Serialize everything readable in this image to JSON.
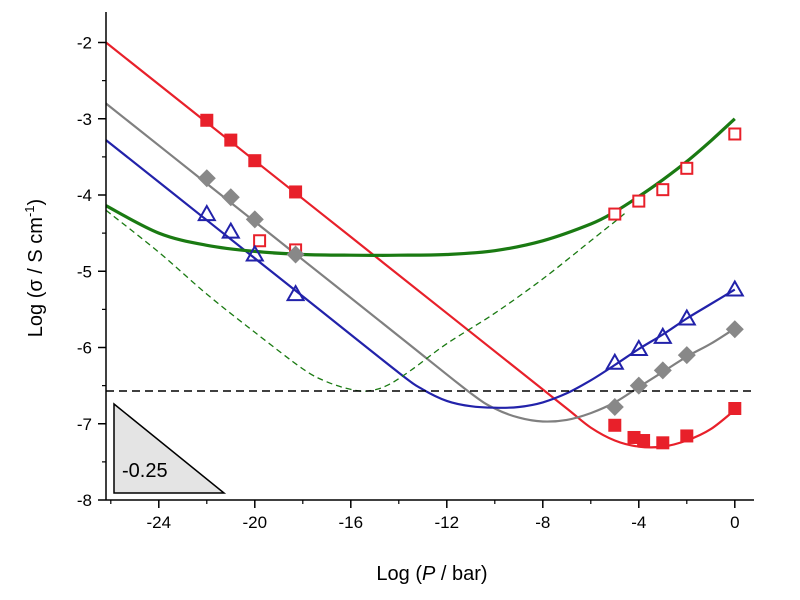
{
  "chart_data": {
    "type": "scatter",
    "xlabel_parts": [
      "Log (",
      "P",
      " / bar)"
    ],
    "ylabel_parts": [
      "Log (σ / S cm",
      "-1",
      ")"
    ],
    "xlim": [
      -26.2,
      0.8
    ],
    "ylim": [
      -8,
      -1.6
    ],
    "xticks": [
      -24,
      -20,
      -16,
      -12,
      -8,
      -4,
      0
    ],
    "xtick_labels": [
      "-24",
      "-20",
      "-16",
      "-12",
      "-8",
      "-4",
      "0"
    ],
    "yticks": [
      -8,
      -7,
      -6,
      -5,
      -4,
      -3,
      -2
    ],
    "ytick_labels": [
      "-8",
      "-7",
      "-6",
      "-5",
      "-4",
      "-3",
      "-2"
    ],
    "grid": false,
    "slope_annotation": "-0.25",
    "reference_line_y": -6.57,
    "series": [
      {
        "color": "#e8202a",
        "marker": "filled-square",
        "points": [
          [
            -22,
            -3.02
          ],
          [
            -21,
            -3.28
          ],
          [
            -20,
            -3.55
          ],
          [
            -18.3,
            -3.96
          ],
          [
            -5,
            -7.02
          ],
          [
            -4.2,
            -7.18
          ],
          [
            -3.8,
            -7.22
          ],
          [
            -3,
            -7.25
          ],
          [
            -2,
            -7.16
          ],
          [
            0,
            -6.8
          ]
        ]
      },
      {
        "color": "#e8202a",
        "marker": "open-square",
        "points": [
          [
            -19.8,
            -4.6
          ],
          [
            -18.3,
            -4.72
          ],
          [
            -5,
            -4.25
          ],
          [
            -4,
            -4.08
          ],
          [
            -3,
            -3.93
          ],
          [
            -2,
            -3.65
          ],
          [
            0,
            -3.2
          ]
        ]
      },
      {
        "color": "#888888",
        "marker": "filled-diamond",
        "points": [
          [
            -22,
            -3.78
          ],
          [
            -21,
            -4.03
          ],
          [
            -20,
            -4.32
          ],
          [
            -18.3,
            -4.78
          ],
          [
            -5,
            -6.78
          ],
          [
            -4,
            -6.5
          ],
          [
            -3,
            -6.3
          ],
          [
            -2,
            -6.1
          ],
          [
            0,
            -5.76
          ]
        ]
      },
      {
        "color": "#2222aa",
        "marker": "open-triangle",
        "points": [
          [
            -22,
            -4.25
          ],
          [
            -21,
            -4.48
          ],
          [
            -20,
            -4.78
          ],
          [
            -18.3,
            -5.3
          ],
          [
            -5,
            -6.2
          ],
          [
            -4,
            -6.02
          ],
          [
            -3,
            -5.86
          ],
          [
            -2,
            -5.62
          ],
          [
            0,
            -5.24
          ]
        ]
      }
    ],
    "curves": [
      {
        "color": "#e8202a",
        "style": "solid",
        "points": [
          [
            -26.2,
            -2.0
          ],
          [
            -20,
            -3.55
          ],
          [
            -16,
            -4.55
          ],
          [
            -12,
            -5.55
          ],
          [
            -9,
            -6.3
          ],
          [
            -7,
            -6.8
          ],
          [
            -6,
            -7.05
          ],
          [
            -5,
            -7.22
          ],
          [
            -4,
            -7.3
          ],
          [
            -3,
            -7.3
          ],
          [
            -2,
            -7.22
          ],
          [
            -1,
            -7.07
          ],
          [
            0,
            -6.82
          ]
        ]
      },
      {
        "color": "#808080",
        "style": "solid",
        "points": [
          [
            -26.2,
            -2.8
          ],
          [
            -22,
            -3.85
          ],
          [
            -18,
            -4.85
          ],
          [
            -14,
            -5.85
          ],
          [
            -11,
            -6.6
          ],
          [
            -10,
            -6.8
          ],
          [
            -9,
            -6.92
          ],
          [
            -8,
            -6.97
          ],
          [
            -7,
            -6.95
          ],
          [
            -6,
            -6.86
          ],
          [
            -5,
            -6.72
          ],
          [
            -4,
            -6.52
          ],
          [
            -3,
            -6.32
          ],
          [
            -2,
            -6.12
          ],
          [
            -1,
            -5.95
          ],
          [
            0,
            -5.75
          ]
        ]
      },
      {
        "color": "#2222aa",
        "style": "solid",
        "points": [
          [
            -26.2,
            -3.28
          ],
          [
            -22,
            -4.33
          ],
          [
            -18,
            -5.33
          ],
          [
            -14,
            -6.33
          ],
          [
            -13,
            -6.55
          ],
          [
            -12,
            -6.7
          ],
          [
            -11,
            -6.77
          ],
          [
            -10,
            -6.79
          ],
          [
            -9,
            -6.78
          ],
          [
            -8,
            -6.72
          ],
          [
            -7,
            -6.6
          ],
          [
            -6,
            -6.43
          ],
          [
            -5,
            -6.23
          ],
          [
            -4,
            -6.02
          ],
          [
            -3,
            -5.83
          ],
          [
            -2,
            -5.62
          ],
          [
            -1,
            -5.43
          ],
          [
            0,
            -5.24
          ]
        ]
      },
      {
        "color": "#1a7a12",
        "style": "solid",
        "points": [
          [
            -26.2,
            -4.14
          ],
          [
            -24,
            -4.5
          ],
          [
            -22,
            -4.66
          ],
          [
            -20,
            -4.74
          ],
          [
            -18,
            -4.78
          ],
          [
            -16,
            -4.79
          ],
          [
            -14,
            -4.79
          ],
          [
            -12,
            -4.78
          ],
          [
            -10,
            -4.73
          ],
          [
            -8,
            -4.6
          ],
          [
            -6,
            -4.38
          ],
          [
            -5,
            -4.22
          ],
          [
            -4,
            -4.02
          ],
          [
            -3,
            -3.8
          ],
          [
            -2,
            -3.56
          ],
          [
            -1,
            -3.29
          ],
          [
            0,
            -3.0
          ]
        ]
      },
      {
        "color": "#1a7a12",
        "style": "dashed",
        "points": [
          [
            -26.2,
            -4.2
          ],
          [
            -24,
            -4.75
          ],
          [
            -22,
            -5.3
          ],
          [
            -20,
            -5.8
          ],
          [
            -18,
            -6.28
          ],
          [
            -17,
            -6.45
          ],
          [
            -16,
            -6.55
          ],
          [
            -15.3,
            -6.57
          ],
          [
            -14.5,
            -6.5
          ],
          [
            -13.5,
            -6.3
          ],
          [
            -12,
            -5.95
          ],
          [
            -10,
            -5.55
          ],
          [
            -8,
            -5.1
          ],
          [
            -6,
            -4.6
          ],
          [
            -5,
            -4.35
          ],
          [
            -4.5,
            -4.22
          ]
        ]
      }
    ]
  }
}
